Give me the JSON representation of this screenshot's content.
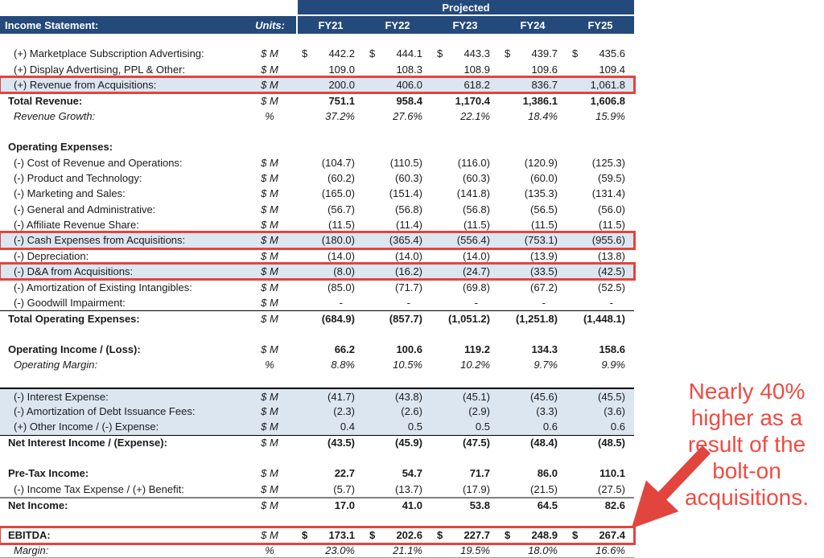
{
  "header": {
    "projected_label": "Projected",
    "title": "Income Statement:",
    "units_label": "Units:",
    "years": [
      "FY21",
      "FY22",
      "FY23",
      "FY24",
      "FY25"
    ]
  },
  "colors": {
    "header_navy": "#24497B",
    "highlight_blue": "#DCE6F1",
    "callout_red": "#E2453E",
    "annotation_red": "#EF4B43"
  },
  "annotation": {
    "text": "Nearly 40% higher as a result of the bolt-on acquisitions.",
    "lines": [
      "Nearly 40%",
      "higher as a",
      "result of the",
      "bolt-on",
      "acquisitions."
    ]
  },
  "table": {
    "rows": [
      {
        "label": "(+) Marketplace Subscription Advertising:",
        "units": "$ M",
        "dollar": true,
        "values": [
          "442.2",
          "444.1",
          "443.3",
          "439.7",
          "435.6"
        ],
        "style": "item"
      },
      {
        "label": "(+) Display Advertising, PPL & Other:",
        "units": "$ M",
        "values": [
          "109.0",
          "108.3",
          "108.9",
          "109.6",
          "109.4"
        ],
        "style": "item"
      },
      {
        "label": "(+) Revenue from Acquisitions:",
        "units": "$ M",
        "values": [
          "200.0",
          "406.0",
          "618.2",
          "836.7",
          "1,061.8"
        ],
        "style": "item",
        "highlight": true,
        "redbox": true
      },
      {
        "label": "Total Revenue:",
        "units": "$ M",
        "values": [
          "751.1",
          "958.4",
          "1,170.4",
          "1,386.1",
          "1,606.8"
        ],
        "style": "bold",
        "borderTop": "thin"
      },
      {
        "label": "Revenue Growth:",
        "units": "%",
        "values": [
          "37.2%",
          "27.6%",
          "22.1%",
          "18.4%",
          "15.9%"
        ],
        "style": "italic"
      },
      {
        "blank": true
      },
      {
        "label": "Operating Expenses:",
        "units": "",
        "values": [
          "",
          "",
          "",
          "",
          ""
        ],
        "style": "bold"
      },
      {
        "label": "(-) Cost of Revenue and Operations:",
        "units": "$ M",
        "values": [
          "(104.7)",
          "(110.5)",
          "(116.0)",
          "(120.9)",
          "(125.3)"
        ],
        "style": "item"
      },
      {
        "label": "(-) Product and Technology:",
        "units": "$ M",
        "values": [
          "(60.2)",
          "(60.3)",
          "(60.3)",
          "(60.0)",
          "(59.5)"
        ],
        "style": "item"
      },
      {
        "label": "(-) Marketing and Sales:",
        "units": "$ M",
        "values": [
          "(165.0)",
          "(151.4)",
          "(141.8)",
          "(135.3)",
          "(131.4)"
        ],
        "style": "item"
      },
      {
        "label": "(-) General and Administrative:",
        "units": "$ M",
        "values": [
          "(56.7)",
          "(56.8)",
          "(56.8)",
          "(56.5)",
          "(56.0)"
        ],
        "style": "item"
      },
      {
        "label": "(-) Affiliate Revenue Share:",
        "units": "$ M",
        "values": [
          "(11.5)",
          "(11.4)",
          "(11.5)",
          "(11.5)",
          "(11.5)"
        ],
        "style": "item"
      },
      {
        "label": "(-) Cash Expenses from Acquisitions:",
        "units": "$ M",
        "values": [
          "(180.0)",
          "(365.4)",
          "(556.4)",
          "(753.1)",
          "(955.6)"
        ],
        "style": "item",
        "highlight": true,
        "redbox": true
      },
      {
        "label": "(-) Depreciation:",
        "units": "$ M",
        "values": [
          "(14.0)",
          "(14.0)",
          "(14.0)",
          "(13.9)",
          "(13.8)"
        ],
        "style": "item"
      },
      {
        "label": "(-) D&A from Acquisitions:",
        "units": "$ M",
        "values": [
          "(8.0)",
          "(16.2)",
          "(24.7)",
          "(33.5)",
          "(42.5)"
        ],
        "style": "item",
        "highlight": true,
        "redbox": true
      },
      {
        "label": "(-) Amortization of Existing Intangibles:",
        "units": "$ M",
        "values": [
          "(85.0)",
          "(71.7)",
          "(69.8)",
          "(67.2)",
          "(52.5)"
        ],
        "style": "item"
      },
      {
        "label": "(-) Goodwill Impairment:",
        "units": "$ M",
        "values": [
          "-",
          "-",
          "-",
          "-",
          "-"
        ],
        "style": "item"
      },
      {
        "label": "Total Operating Expenses:",
        "units": "$ M",
        "values": [
          "(684.9)",
          "(857.7)",
          "(1,051.2)",
          "(1,251.8)",
          "(1,448.1)"
        ],
        "style": "bold",
        "borderTop": "thin"
      },
      {
        "blank": true
      },
      {
        "label": "Operating Income / (Loss):",
        "units": "$ M",
        "values": [
          "66.2",
          "100.6",
          "119.2",
          "134.3",
          "158.6"
        ],
        "style": "bold"
      },
      {
        "label": "Operating Margin:",
        "units": "%",
        "values": [
          "8.8%",
          "10.5%",
          "10.2%",
          "9.7%",
          "9.9%"
        ],
        "style": "italic"
      },
      {
        "blank": true
      },
      {
        "label": "(-) Interest Expense:",
        "units": "$ M",
        "values": [
          "(41.7)",
          "(43.8)",
          "(45.1)",
          "(45.6)",
          "(45.5)"
        ],
        "style": "item",
        "highlight": true,
        "borderTop": "thick"
      },
      {
        "label": "(-) Amortization of Debt Issuance Fees:",
        "units": "$ M",
        "values": [
          "(2.3)",
          "(2.6)",
          "(2.9)",
          "(3.3)",
          "(3.6)"
        ],
        "style": "item",
        "highlight": true
      },
      {
        "label": "(+) Other Income / (-) Expense:",
        "units": "$ M",
        "values": [
          "0.4",
          "0.5",
          "0.5",
          "0.6",
          "0.6"
        ],
        "style": "item",
        "highlight": true
      },
      {
        "label": "Net Interest Income / (Expense):",
        "units": "$ M",
        "values": [
          "(43.5)",
          "(45.9)",
          "(47.5)",
          "(48.4)",
          "(48.5)"
        ],
        "style": "bold",
        "borderTop": "thin"
      },
      {
        "blank": true
      },
      {
        "label": "Pre-Tax Income:",
        "units": "$ M",
        "values": [
          "22.7",
          "54.7",
          "71.7",
          "86.0",
          "110.1"
        ],
        "style": "bold"
      },
      {
        "label": "(-) Income Tax Expense / (+) Benefit:",
        "units": "$ M",
        "values": [
          "(5.7)",
          "(13.7)",
          "(17.9)",
          "(21.5)",
          "(27.5)"
        ],
        "style": "item"
      },
      {
        "label": "Net Income:",
        "units": "$ M",
        "values": [
          "17.0",
          "41.0",
          "53.8",
          "64.5",
          "82.6"
        ],
        "style": "bold",
        "borderTop": "gray"
      },
      {
        "blank": true
      },
      {
        "label": "EBITDA:",
        "units": "$ M",
        "dollar": true,
        "values": [
          "173.1",
          "202.6",
          "227.7",
          "248.9",
          "267.4"
        ],
        "style": "bold",
        "redbox": true
      },
      {
        "label": "Margin:",
        "units": "%",
        "values": [
          "23.0%",
          "21.1%",
          "19.5%",
          "18.0%",
          "16.6%"
        ],
        "style": "italic",
        "borderBottom": "gray"
      }
    ]
  }
}
